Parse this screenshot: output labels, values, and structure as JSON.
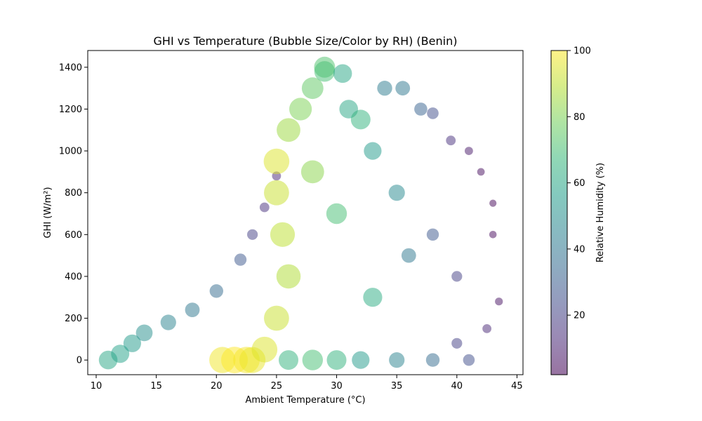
{
  "chart_data": {
    "type": "scatter",
    "title": "GHI vs Temperature (Bubble Size/Color by RH) (Benin)",
    "xlabel": "Ambient Temperature (°C)",
    "ylabel": "GHI (W/m²)",
    "xlim": [
      9.3,
      45.5
    ],
    "ylim": [
      -70,
      1480
    ],
    "xticks": [
      10,
      15,
      20,
      25,
      30,
      35,
      40,
      45
    ],
    "yticks": [
      0,
      200,
      400,
      600,
      800,
      1000,
      1200,
      1400
    ],
    "grid": false,
    "colormap": "viridis",
    "point_alpha": 0.5,
    "size_by": "Relative Humidity (%)",
    "color_by": "Relative Humidity (%)",
    "colorbar": {
      "label": "Relative Humidity (%)",
      "range": [
        2,
        100
      ],
      "ticks": [
        20,
        40,
        60,
        80,
        100
      ]
    },
    "series": [
      {
        "points": [
          [
            11,
            0,
            60
          ],
          [
            12,
            30,
            58
          ],
          [
            13,
            80,
            55
          ],
          [
            14,
            130,
            50
          ],
          [
            16,
            180,
            45
          ],
          [
            18,
            240,
            40
          ],
          [
            20,
            330,
            35
          ],
          [
            22,
            480,
            28
          ],
          [
            23,
            600,
            20
          ],
          [
            24,
            730,
            15
          ],
          [
            25,
            880,
            12
          ],
          [
            26,
            0,
            65
          ],
          [
            28,
            0,
            70
          ],
          [
            30,
            0,
            65
          ],
          [
            32,
            0,
            55
          ],
          [
            35,
            0,
            45
          ],
          [
            38,
            0,
            35
          ],
          [
            41,
            0,
            25
          ],
          [
            20.5,
            0,
            98
          ],
          [
            21.5,
            0,
            100
          ],
          [
            22.5,
            0,
            99
          ],
          [
            23,
            0,
            97
          ],
          [
            24,
            50,
            95
          ],
          [
            25,
            200,
            92
          ],
          [
            26,
            400,
            88
          ],
          [
            25.5,
            600,
            90
          ],
          [
            25,
            800,
            92
          ],
          [
            25,
            950,
            95
          ],
          [
            26,
            1100,
            85
          ],
          [
            27,
            1200,
            80
          ],
          [
            28,
            1300,
            75
          ],
          [
            29,
            1400,
            72
          ],
          [
            29,
            1380,
            70
          ],
          [
            30.5,
            1370,
            60
          ],
          [
            31,
            1200,
            60
          ],
          [
            33,
            1000,
            55
          ],
          [
            35,
            800,
            48
          ],
          [
            34,
            1300,
            42
          ],
          [
            35.5,
            1300,
            40
          ],
          [
            37,
            1200,
            32
          ],
          [
            38,
            1180,
            25
          ],
          [
            39.5,
            1050,
            15
          ],
          [
            41,
            1000,
            8
          ],
          [
            42,
            900,
            5
          ],
          [
            43,
            750,
            3
          ],
          [
            43,
            600,
            4
          ],
          [
            43.5,
            280,
            6
          ],
          [
            42.5,
            150,
            12
          ],
          [
            40,
            80,
            20
          ],
          [
            36,
            500,
            40
          ],
          [
            33,
            300,
            62
          ],
          [
            30,
            700,
            70
          ],
          [
            28,
            900,
            82
          ],
          [
            32,
            1150,
            65
          ],
          [
            38,
            600,
            28
          ],
          [
            40,
            400,
            20
          ]
        ]
      }
    ]
  }
}
